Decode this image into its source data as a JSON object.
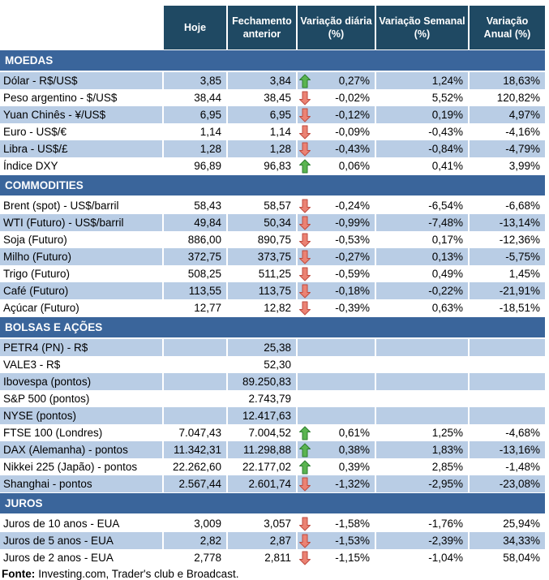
{
  "chart_data": {
    "type": "table",
    "columns": [
      {
        "label": "Hoje",
        "line1": "Hoje",
        "line2": ""
      },
      {
        "label": "Fechamento anterior",
        "line1": "Fechamento",
        "line2": "anterior"
      },
      {
        "label": "Variação diária (%)",
        "line1": "Variação diária",
        "line2": "(%)"
      },
      {
        "label": "Variação Semanal (%)",
        "line1": "Variação Semanal",
        "line2": "(%)"
      },
      {
        "label": "Variação Anual (%)",
        "line1": "Variação",
        "line2": "Anual (%)"
      }
    ],
    "sections": [
      {
        "title": "MOEDAS",
        "rows": [
          {
            "label": "Dólar - R$/US$",
            "hoje": "3,85",
            "fechamento": "3,84",
            "trend": "up",
            "var_diaria": "0,27%",
            "var_semanal": "1,24%",
            "var_anual": "18,63%"
          },
          {
            "label": "Peso argentino - $/US$",
            "hoje": "38,44",
            "fechamento": "38,45",
            "trend": "down",
            "var_diaria": "-0,02%",
            "var_semanal": "5,52%",
            "var_anual": "120,82%"
          },
          {
            "label": "Yuan Chinês - ¥/US$",
            "hoje": "6,95",
            "fechamento": "6,95",
            "trend": "down",
            "var_diaria": "-0,12%",
            "var_semanal": "0,19%",
            "var_anual": "4,97%"
          },
          {
            "label": "Euro - US$/€",
            "hoje": "1,14",
            "fechamento": "1,14",
            "trend": "down",
            "var_diaria": "-0,09%",
            "var_semanal": "-0,43%",
            "var_anual": "-4,16%"
          },
          {
            "label": "Libra - US$/£",
            "hoje": "1,28",
            "fechamento": "1,28",
            "trend": "down",
            "var_diaria": "-0,43%",
            "var_semanal": "-0,84%",
            "var_anual": "-4,79%"
          },
          {
            "label": "Índice DXY",
            "hoje": "96,89",
            "fechamento": "96,83",
            "trend": "up",
            "var_diaria": "0,06%",
            "var_semanal": "0,41%",
            "var_anual": "3,99%"
          }
        ]
      },
      {
        "title": "COMMODITIES",
        "rows": [
          {
            "label": "Brent (spot) - US$/barril",
            "hoje": "58,43",
            "fechamento": "58,57",
            "trend": "down",
            "var_diaria": "-0,24%",
            "var_semanal": "-6,54%",
            "var_anual": "-6,68%"
          },
          {
            "label": "WTI (Futuro) - US$/barril",
            "hoje": "49,84",
            "fechamento": "50,34",
            "trend": "down",
            "var_diaria": "-0,99%",
            "var_semanal": "-7,48%",
            "var_anual": "-13,14%"
          },
          {
            "label": "Soja (Futuro)",
            "hoje": "886,00",
            "fechamento": "890,75",
            "trend": "down",
            "var_diaria": "-0,53%",
            "var_semanal": "0,17%",
            "var_anual": "-12,36%"
          },
          {
            "label": "Milho (Futuro)",
            "hoje": "372,75",
            "fechamento": "373,75",
            "trend": "down",
            "var_diaria": "-0,27%",
            "var_semanal": "0,13%",
            "var_anual": "-5,75%"
          },
          {
            "label": "Trigo (Futuro)",
            "hoje": "508,25",
            "fechamento": "511,25",
            "trend": "down",
            "var_diaria": "-0,59%",
            "var_semanal": "0,49%",
            "var_anual": "1,45%"
          },
          {
            "label": "Café (Futuro)",
            "hoje": "113,55",
            "fechamento": "113,75",
            "trend": "down",
            "var_diaria": "-0,18%",
            "var_semanal": "-0,22%",
            "var_anual": "-21,91%"
          },
          {
            "label": "Açúcar (Futuro)",
            "hoje": "12,77",
            "fechamento": "12,82",
            "trend": "down",
            "var_diaria": "-0,39%",
            "var_semanal": "0,63%",
            "var_anual": "-18,51%"
          }
        ]
      },
      {
        "title": "BOLSAS E AÇÕES",
        "rows": [
          {
            "label": "PETR4 (PN) - R$",
            "hoje": "",
            "fechamento": "25,38",
            "trend": "none",
            "var_diaria": "",
            "var_semanal": "",
            "var_anual": ""
          },
          {
            "label": "VALE3 - R$",
            "hoje": "",
            "fechamento": "52,30",
            "trend": "none",
            "var_diaria": "",
            "var_semanal": "",
            "var_anual": ""
          },
          {
            "label": "Ibovespa (pontos)",
            "hoje": "",
            "fechamento": "89.250,83",
            "trend": "none",
            "var_diaria": "",
            "var_semanal": "",
            "var_anual": ""
          },
          {
            "label": "S&P 500 (pontos)",
            "hoje": "",
            "fechamento": "2.743,79",
            "trend": "none",
            "var_diaria": "",
            "var_semanal": "",
            "var_anual": ""
          },
          {
            "label": "NYSE (pontos)",
            "hoje": "",
            "fechamento": "12.417,63",
            "trend": "none",
            "var_diaria": "",
            "var_semanal": "",
            "var_anual": ""
          },
          {
            "label": "FTSE 100 (Londres)",
            "hoje": "7.047,43",
            "fechamento": "7.004,52",
            "trend": "up",
            "var_diaria": "0,61%",
            "var_semanal": "1,25%",
            "var_anual": "-4,68%"
          },
          {
            "label": "DAX (Alemanha) - pontos",
            "hoje": "11.342,31",
            "fechamento": "11.298,88",
            "trend": "up",
            "var_diaria": "0,38%",
            "var_semanal": "1,83%",
            "var_anual": "-13,16%"
          },
          {
            "label": "Nikkei 225 (Japão) - pontos",
            "hoje": "22.262,60",
            "fechamento": "22.177,02",
            "trend": "up",
            "var_diaria": "0,39%",
            "var_semanal": "2,85%",
            "var_anual": "-1,48%"
          },
          {
            "label": "Shanghai - pontos",
            "hoje": "2.567,44",
            "fechamento": "2.601,74",
            "trend": "down",
            "var_diaria": "-1,32%",
            "var_semanal": "-2,95%",
            "var_anual": "-23,08%"
          }
        ]
      },
      {
        "title": "JUROS",
        "rows": [
          {
            "label": "Juros de 10 anos - EUA",
            "hoje": "3,009",
            "fechamento": "3,057",
            "trend": "down",
            "var_diaria": "-1,58%",
            "var_semanal": "-1,76%",
            "var_anual": "25,94%"
          },
          {
            "label": "Juros de 5 anos - EUA",
            "hoje": "2,82",
            "fechamento": "2,87",
            "trend": "down",
            "var_diaria": "-1,53%",
            "var_semanal": "-2,39%",
            "var_anual": "34,33%"
          },
          {
            "label": "Juros de 2 anos - EUA",
            "hoje": "2,778",
            "fechamento": "2,811",
            "trend": "down",
            "var_diaria": "-1,15%",
            "var_semanal": "-1,04%",
            "var_anual": "58,04%"
          }
        ]
      }
    ],
    "source": "Fonte: Investing.com, Trader's club e Broadcast."
  },
  "footer": {
    "label": "Fonte:",
    "text": "Investing.com, Trader's club e Broadcast."
  },
  "colors": {
    "header_bg": "#1F4963",
    "band_bg": "#3A659B",
    "row_shade": "#B9CDE5",
    "up_green": "#5AB450",
    "up_green_border": "#2E7D32",
    "down_red": "#EB8273",
    "down_red_border": "#BE4B40",
    "text": "#000000",
    "header_text": "#FFFFFF"
  }
}
